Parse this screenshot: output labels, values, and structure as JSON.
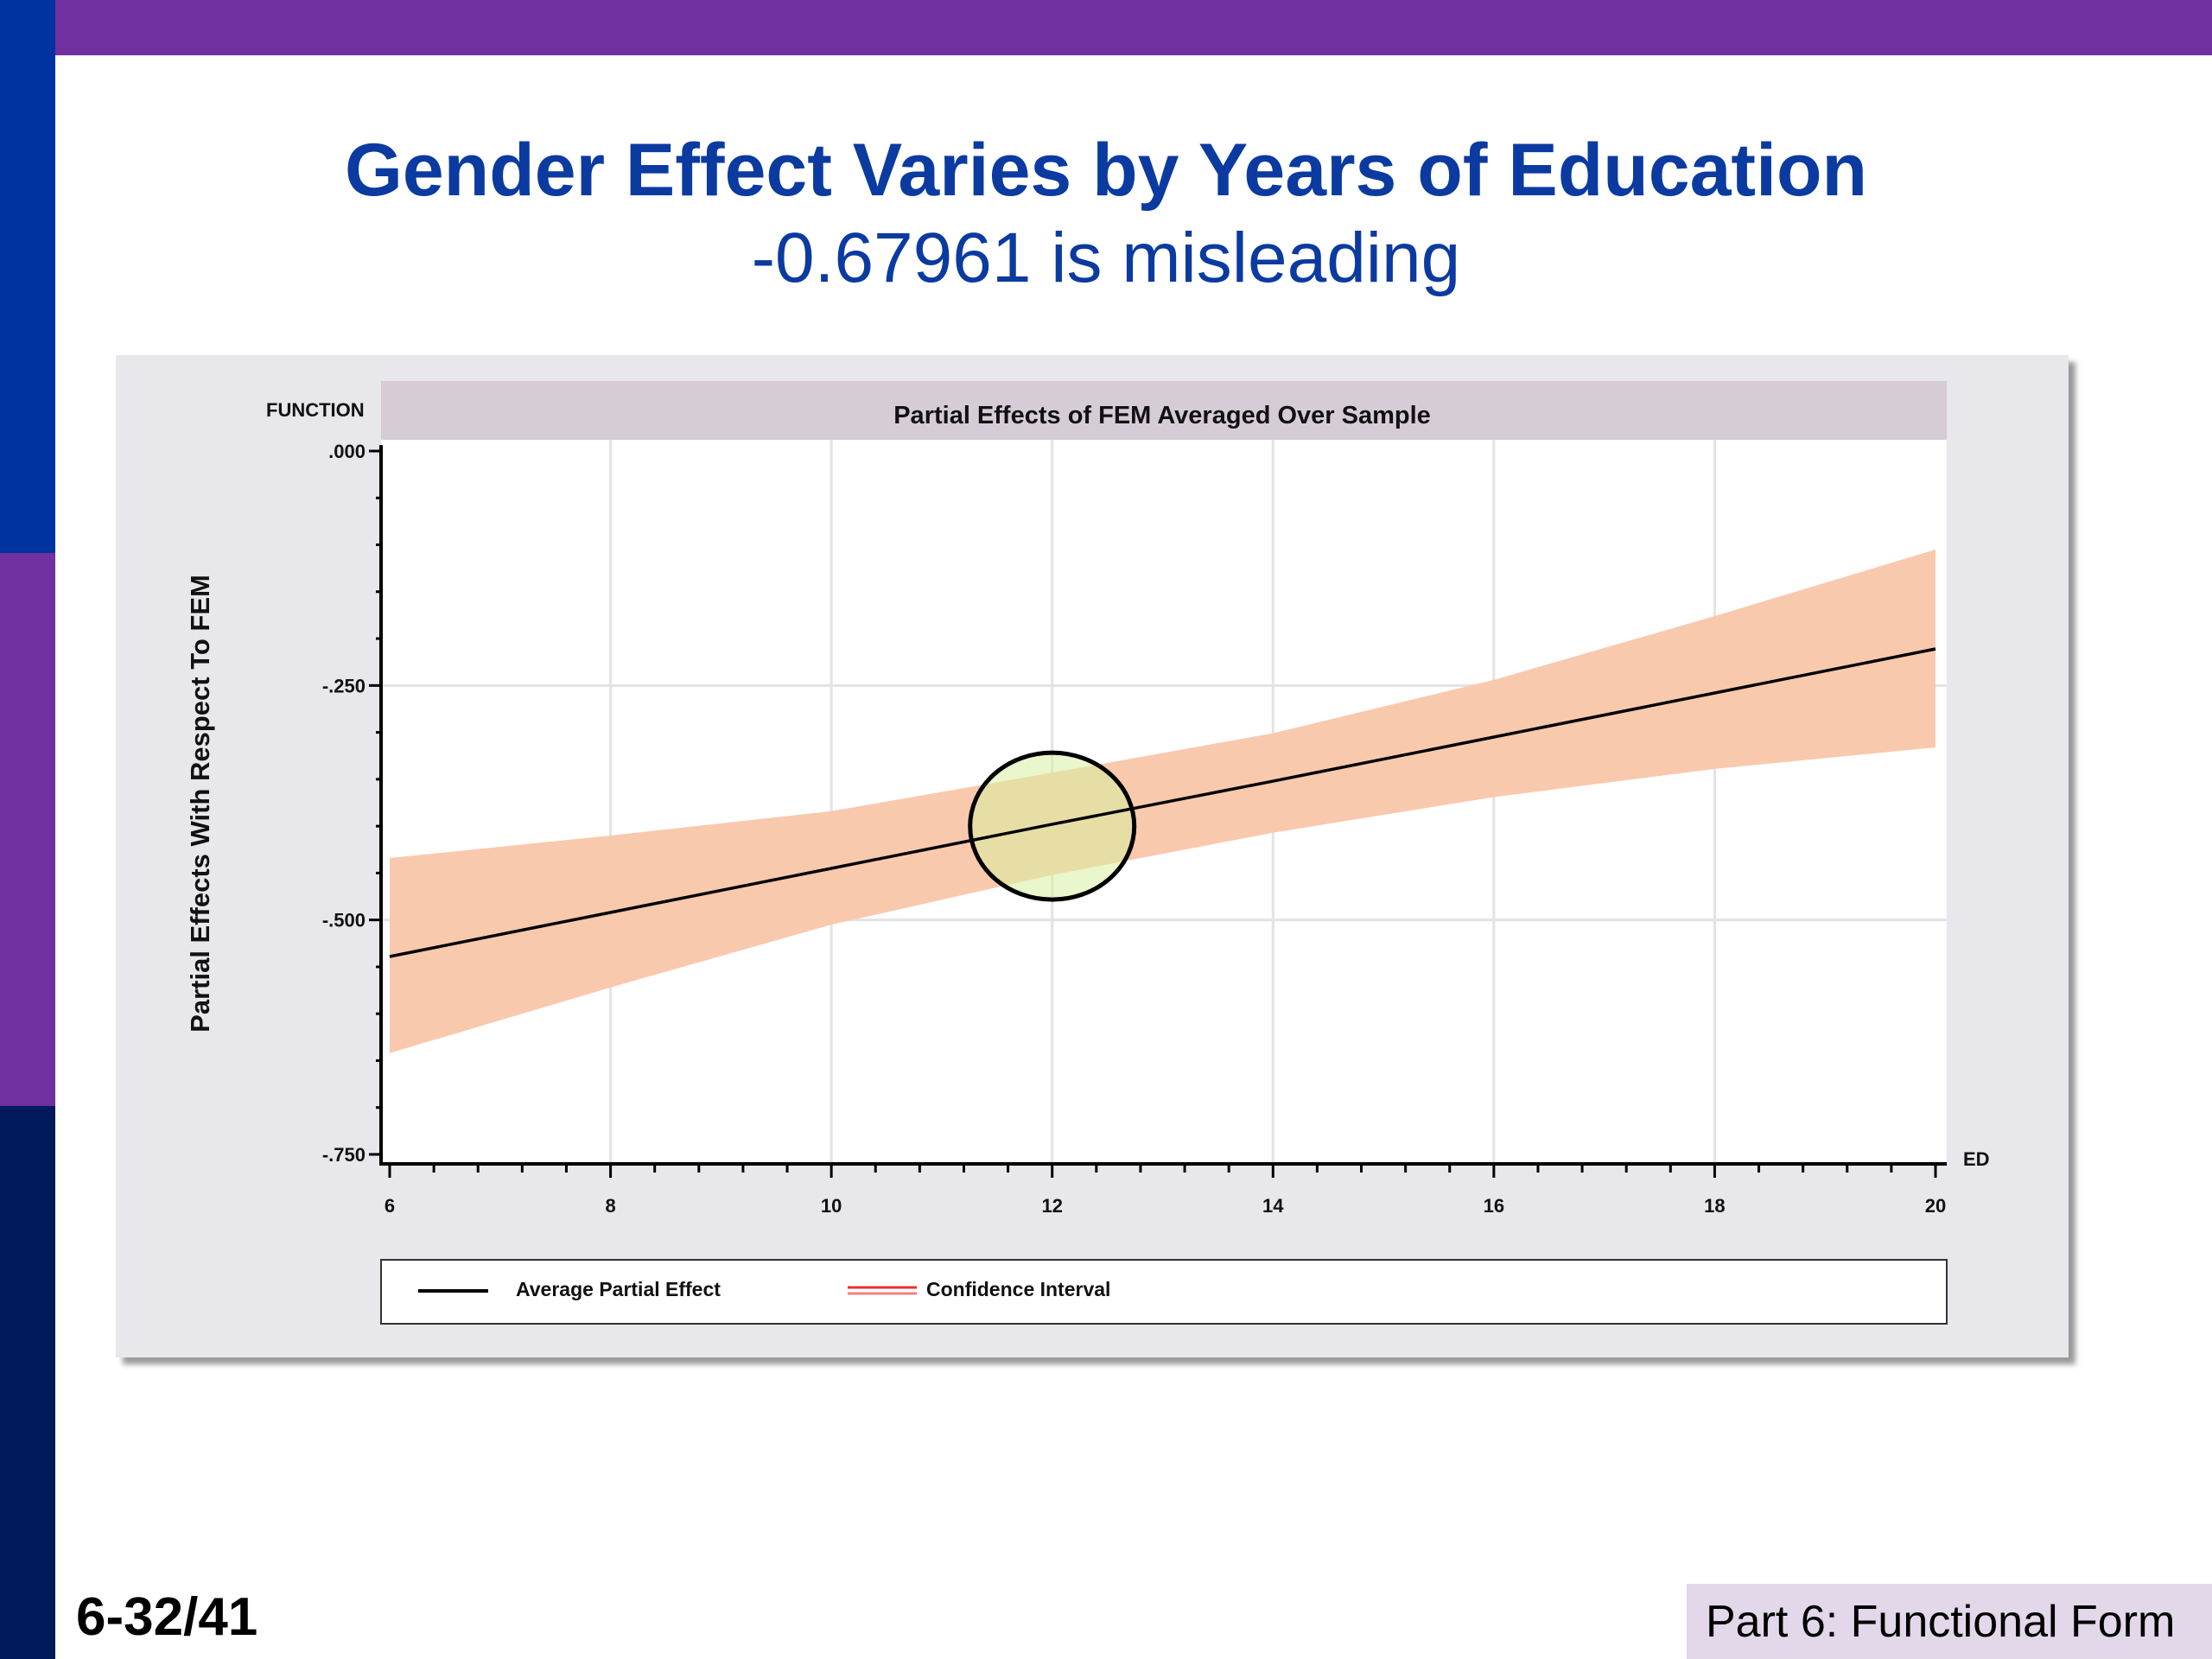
{
  "slide": {
    "title": "Gender Effect Varies by Years of Education",
    "subtitle": "-0.67961 is misleading",
    "slide_number": "6-32/41",
    "section": "Part 6: Functional Form",
    "colors": {
      "top_bar": "#7030a0",
      "strip_top": "#0033a0",
      "strip_mid": "#7030a0",
      "strip_bottom": "#001a5c",
      "title": "#0b3aa0"
    }
  },
  "chart_data": {
    "type": "line",
    "title": "Partial Effects of FEM Averaged Over Sample",
    "corner_label": "FUNCTION",
    "xlabel": "ED",
    "ylabel": "Partial Effects With Respect To FEM",
    "xlim": [
      6,
      20
    ],
    "ylim": [
      -0.75,
      0.0
    ],
    "x_ticks": [
      6,
      8,
      10,
      12,
      14,
      16,
      18,
      20
    ],
    "x_tick_labels": [
      "6",
      "8",
      "10",
      "12",
      "14",
      "16",
      "18",
      "20"
    ],
    "y_ticks": [
      0.0,
      -0.25,
      -0.5,
      -0.75
    ],
    "y_tick_labels": [
      ".000",
      "-.250",
      "-.500",
      "-.750"
    ],
    "grid": true,
    "x": [
      6,
      8,
      10,
      12,
      14,
      16,
      18,
      20
    ],
    "series": [
      {
        "name": "Average Partial Effect",
        "color": "#000000",
        "values": [
          -0.539,
          -0.492,
          -0.445,
          -0.398,
          -0.352,
          -0.305,
          -0.258,
          -0.211
        ]
      },
      {
        "name": "Confidence Interval",
        "color": "#f9c9ae",
        "legend_color": "#e83030",
        "upper": [
          -0.434,
          -0.41,
          -0.384,
          -0.343,
          -0.301,
          -0.244,
          -0.176,
          -0.105
        ],
        "lower": [
          -0.642,
          -0.572,
          -0.505,
          -0.452,
          -0.407,
          -0.369,
          -0.339,
          -0.316
        ]
      }
    ],
    "annotation": {
      "shape": "circle",
      "x": 12,
      "y": -0.4,
      "fill": "#d8eea0"
    },
    "legend": {
      "placement": "bottom",
      "entries": [
        "Average Partial Effect",
        "Confidence Interval"
      ]
    }
  }
}
